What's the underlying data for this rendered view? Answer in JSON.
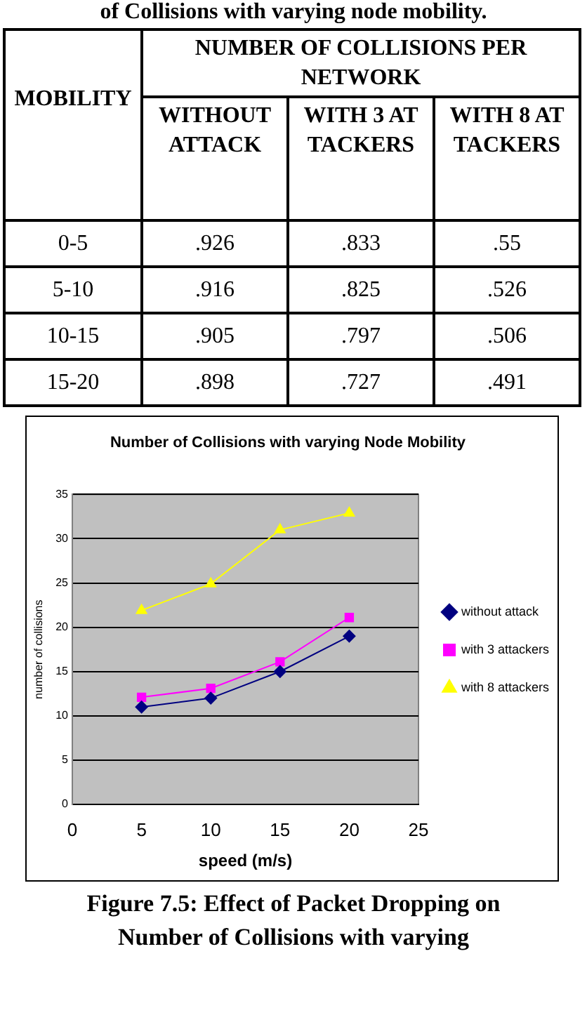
{
  "chart_data": [
    {
      "type": "heatmap",
      "title": "of Collisions with varying node mobility.",
      "xlabel": "NUMBER OF COLLISIONS PER NETWORK",
      "ylabel": "MOBILITY",
      "categories": [
        "WITHOUT ATTACK",
        "WITH 3 ATTACKERS",
        "WITH 8 ATTACKERS"
      ],
      "y_categories": [
        "0-5",
        "5-10",
        "10-15",
        "15-20"
      ],
      "cells": [
        [
          0.926,
          0.833,
          0.55
        ],
        [
          0.916,
          0.825,
          0.526
        ],
        [
          0.905,
          0.797,
          0.506
        ],
        [
          0.898,
          0.727,
          0.491
        ]
      ],
      "cell_labels": [
        [
          ".926",
          ".833",
          ".55"
        ],
        [
          ".916",
          ".825",
          ".526"
        ],
        [
          ".905",
          ".797",
          ".506"
        ],
        [
          ".898",
          ".727",
          ".491"
        ]
      ]
    },
    {
      "type": "line",
      "title": "Number of Collisions with varying Node Mobility",
      "xlabel": "speed (m/s)",
      "ylabel": "number of collisions",
      "x": [
        5,
        10,
        15,
        20
      ],
      "xlim": [
        0,
        25
      ],
      "xticks": [
        0,
        5,
        10,
        15,
        20,
        25
      ],
      "ylim": [
        0,
        35
      ],
      "yticks": [
        0,
        5,
        10,
        15,
        20,
        25,
        30,
        35
      ],
      "grid": "y",
      "legend": "right",
      "series": [
        {
          "name": "without attack",
          "color": "#000080",
          "marker": "diamond",
          "values": [
            11.0,
            12.0,
            15.0,
            19.0
          ]
        },
        {
          "name": "with 3 attackers",
          "color": "#ff00ff",
          "marker": "square",
          "values": [
            12.1,
            13.1,
            16.1,
            21.1
          ]
        },
        {
          "name": "with 8 attackers",
          "color": "#ffff00",
          "marker": "triangle",
          "values": [
            21.9,
            24.9,
            31.0,
            32.9
          ]
        }
      ],
      "annotations": [
        "Figure 7.5: Effect of Packet Dropping on Number of Collisions with varying"
      ]
    }
  ]
}
